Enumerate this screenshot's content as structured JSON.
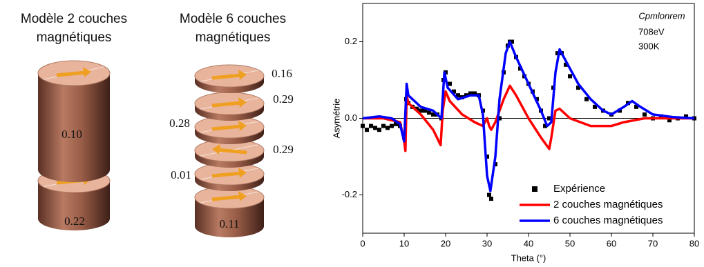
{
  "diagrams": [
    {
      "title": [
        "Modèle 2 couches",
        "magnétiques"
      ],
      "labels": [
        "0.10",
        "0.22"
      ]
    },
    {
      "title": [
        "Modèle 6 couches",
        "magnétiques"
      ],
      "labels": [
        "0.16",
        "0.29",
        "0.28",
        "0.29",
        "0.01",
        "0.11"
      ]
    }
  ],
  "chart_data": {
    "type": "line",
    "annotations": [
      "Cpmlonrem",
      "708eV",
      "300K"
    ],
    "x_label": "Theta (°)",
    "y_label": "Asymétrie",
    "xlim": [
      0,
      80
    ],
    "xticks": [
      0,
      10,
      20,
      30,
      40,
      50,
      60,
      70,
      80
    ],
    "ylim": [
      -0.3,
      0.3
    ],
    "yticks": [
      -0.2,
      {
        "value": 0,
        "label": "0.0"
      },
      0.2
    ],
    "zero_line": true,
    "legend": "lower right",
    "series": [
      {
        "name": "Expérience",
        "color": "#000000",
        "style": "scatter",
        "x": [
          0,
          1,
          2,
          3,
          4,
          5,
          6,
          7,
          8,
          9,
          10,
          10.5,
          11,
          12,
          13,
          14,
          15,
          16,
          17,
          18,
          19,
          19.5,
          20,
          21,
          22,
          23,
          24,
          25,
          26,
          27,
          28,
          29,
          30,
          30.5,
          31,
          32,
          33,
          34,
          35,
          35.5,
          36,
          37,
          38,
          39,
          40,
          41,
          42,
          43,
          44,
          45,
          46,
          47,
          48,
          49,
          50,
          52,
          54,
          56,
          58,
          60,
          62,
          64,
          66,
          68,
          70,
          72,
          74,
          76,
          78,
          80
        ],
        "values": [
          -0.02,
          -0.03,
          -0.02,
          -0.025,
          -0.03,
          -0.02,
          -0.025,
          -0.02,
          -0.015,
          -0.02,
          -0.05,
          0.05,
          0.04,
          0.03,
          0.025,
          0.02,
          0.02,
          0.015,
          0.01,
          0.01,
          0.0,
          0.1,
          0.12,
          0.09,
          0.07,
          0.06,
          0.055,
          0.06,
          0.065,
          0.065,
          0.06,
          0.02,
          -0.1,
          -0.2,
          -0.21,
          -0.12,
          0.0,
          0.12,
          0.19,
          0.2,
          0.2,
          0.16,
          0.13,
          0.11,
          0.09,
          0.07,
          0.05,
          0.02,
          -0.02,
          0.0,
          0.08,
          0.17,
          0.17,
          0.14,
          0.11,
          0.08,
          0.05,
          0.03,
          0.02,
          0.01,
          0.02,
          0.04,
          0.03,
          0.01,
          0.0,
          0.005,
          -0.005,
          0.0,
          0.005,
          0.0
        ]
      },
      {
        "name": "2 couches magnétiques",
        "color": "#ff0000",
        "style": "line",
        "x": [
          0,
          5,
          9,
          10,
          10.3,
          10.6,
          11,
          14,
          17,
          18.8,
          19.3,
          20,
          21,
          24,
          27,
          29,
          30,
          30.5,
          31,
          32,
          34,
          35.5,
          37,
          40,
          43,
          45,
          45.5,
          46.5,
          47.5,
          50,
          55,
          60,
          63,
          68,
          80
        ],
        "values": [
          0,
          0,
          -0.01,
          -0.06,
          -0.085,
          0.06,
          0.04,
          0.01,
          -0.03,
          -0.07,
          0.02,
          0.07,
          0.045,
          0.01,
          -0.01,
          -0.02,
          0,
          -0.02,
          -0.03,
          -0.01,
          0.05,
          0.085,
          0.06,
          0.0,
          -0.05,
          -0.08,
          -0.05,
          0.02,
          0.025,
          0.0,
          -0.02,
          -0.02,
          -0.01,
          0.0,
          0
        ]
      },
      {
        "name": "6 couches magnétiques",
        "color": "#0000ff",
        "style": "line",
        "x": [
          0,
          4,
          7,
          9,
          10,
          10.6,
          11,
          14,
          17,
          19,
          19.7,
          20.5,
          23,
          26,
          28,
          29,
          30,
          30.8,
          32,
          33,
          34.5,
          35.5,
          37,
          40,
          43,
          44.5,
          45.5,
          46.5,
          47.5,
          49,
          52,
          55,
          58,
          60,
          63,
          65,
          67,
          70,
          75,
          80
        ],
        "values": [
          0,
          0.005,
          0.0,
          -0.015,
          -0.06,
          0.09,
          0.06,
          0.03,
          0.02,
          0.0,
          0.12,
          0.08,
          0.05,
          0.06,
          0.06,
          0.01,
          -0.15,
          -0.19,
          -0.1,
          0.05,
          0.17,
          0.2,
          0.16,
          0.09,
          0.02,
          -0.02,
          -0.01,
          0.12,
          0.18,
          0.15,
          0.09,
          0.05,
          0.02,
          0.01,
          0.03,
          0.045,
          0.03,
          0.01,
          0.003,
          0
        ]
      }
    ]
  }
}
